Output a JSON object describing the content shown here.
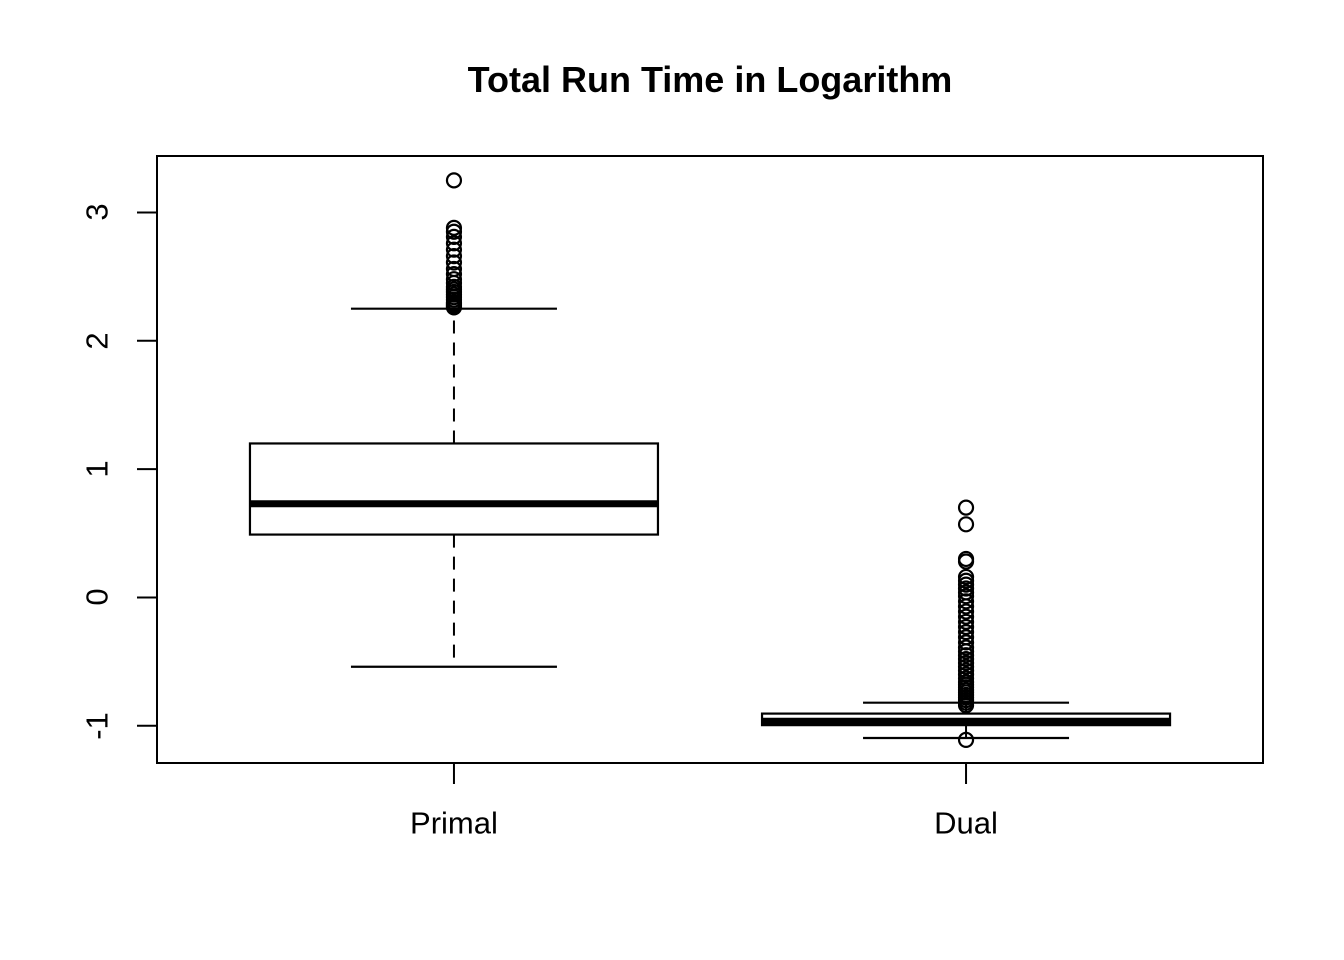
{
  "page": {
    "background": "#ffffff",
    "foreground": "#000000"
  },
  "chart_data": {
    "type": "boxplot",
    "title": "Total Run Time in Logarithm",
    "xlabel": "",
    "ylabel": "",
    "categories": [
      "Primal",
      "Dual"
    ],
    "y_ticks": [
      3,
      2,
      1,
      0,
      -1
    ],
    "ylim": [
      -1.29,
      3.44
    ],
    "grid": false,
    "legend": null,
    "marker": "open-circle",
    "colors": {
      "stroke": "#000000",
      "box_fill": "#ffffff"
    },
    "series": [
      {
        "name": "Primal",
        "median": 0.73,
        "q1": 0.49,
        "q3": 1.2,
        "whisker_low": -0.54,
        "whisker_high": 2.25,
        "outliers": [
          3.25,
          2.88,
          2.85,
          2.81,
          2.76,
          2.71,
          2.66,
          2.61,
          2.56,
          2.52,
          2.48,
          2.45,
          2.42,
          2.4,
          2.38,
          2.36,
          2.34,
          2.32,
          2.3,
          2.29,
          2.28,
          2.27,
          2.26
        ]
      },
      {
        "name": "Dual",
        "median": -0.965,
        "q1": -0.995,
        "q3": -0.905,
        "whisker_low": -1.095,
        "whisker_high": -0.82,
        "outliers": [
          0.7,
          0.57,
          0.3,
          0.28,
          0.16,
          0.13,
          0.1,
          0.07,
          0.04,
          0.01,
          -0.03,
          -0.07,
          -0.11,
          -0.15,
          -0.19,
          -0.23,
          -0.27,
          -0.31,
          -0.35,
          -0.39,
          -0.42,
          -0.45,
          -0.48,
          -0.51,
          -0.54,
          -0.57,
          -0.6,
          -0.63,
          -0.66,
          -0.68,
          -0.7,
          -0.72,
          -0.74,
          -0.76,
          -0.78,
          -0.8,
          -0.82,
          -0.84,
          -1.11
        ]
      }
    ]
  }
}
